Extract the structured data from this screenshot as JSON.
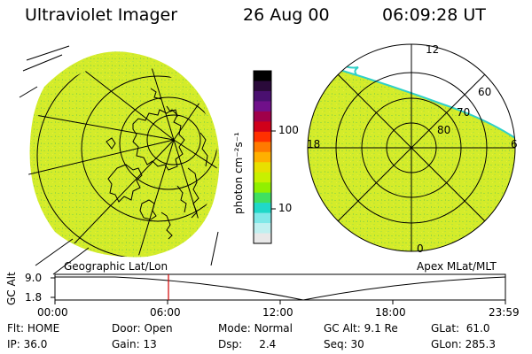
{
  "header": {
    "title": "Ultraviolet Imager",
    "date": "26 Aug 00",
    "time": "06:09:28 UT"
  },
  "colorbar": {
    "unit_label": "photon cm⁻²s⁻¹",
    "ticks": [
      "100",
      "10"
    ],
    "colors_top_to_bottom": [
      "#000000",
      "#2a0a3a",
      "#4a1070",
      "#70108a",
      "#a0004a",
      "#d0001a",
      "#ff3000",
      "#ff7a00",
      "#ffb000",
      "#e8e000",
      "#c8f000",
      "#90f000",
      "#40e060",
      "#20d8c8",
      "#80e8e8",
      "#c0f0f0",
      "#e8e8e8"
    ]
  },
  "polar": {
    "mlt_labels": [
      "12",
      "18",
      "6",
      "0"
    ],
    "mlat_labels": [
      "60",
      "70",
      "80"
    ]
  },
  "map_labels": {
    "left": "Geographic Lat/Lon",
    "right": "Apex MLat/MLT"
  },
  "altitude_plot": {
    "y_title": "GC Alt",
    "y_ticks": [
      "9.0",
      "1.8"
    ],
    "x_ticks": [
      "00:00",
      "06:00",
      "12:00",
      "18:00",
      "23:59"
    ],
    "marker_time": "06:09"
  },
  "status": {
    "row1": [
      {
        "label": "Flt:",
        "value": "HOME"
      },
      {
        "label": "Door:",
        "value": "Open"
      },
      {
        "label": "Mode:",
        "value": "Normal"
      },
      {
        "label": "GC Alt:",
        "value": "9.1 Re"
      },
      {
        "label": "GLat:",
        "value": "61.0"
      }
    ],
    "row2": [
      {
        "label": "IP:",
        "value": "36.0"
      },
      {
        "label": "Gain:",
        "value": "13"
      },
      {
        "label": "Dsp:",
        "value": "2.4"
      },
      {
        "label": "Seq:",
        "value": "30"
      },
      {
        "label": "GLon:",
        "value": "285.3"
      }
    ]
  },
  "colors": {
    "aurora_fill": "#d4ec2a",
    "aurora_speckle": "#9edc3a",
    "marker": "#d00000",
    "cyan_edge": "#30d0c8"
  }
}
